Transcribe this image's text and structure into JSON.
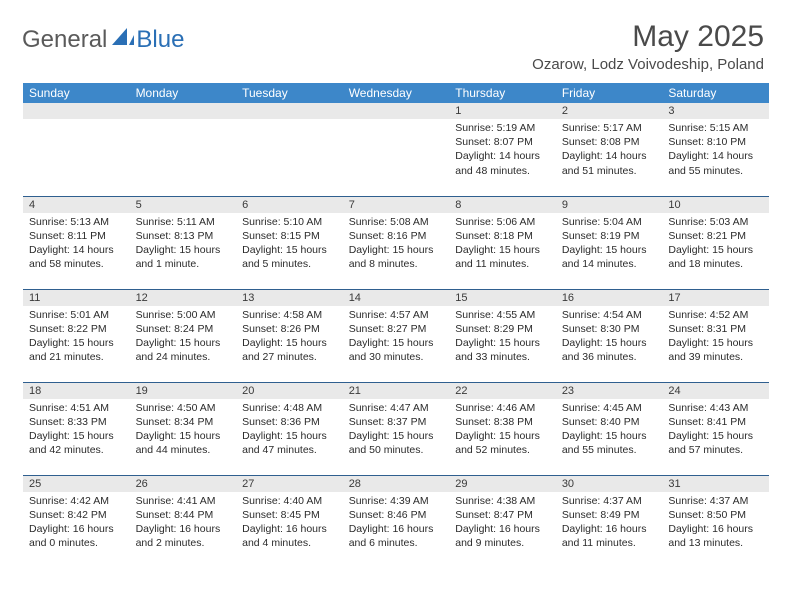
{
  "logo": {
    "general": "General",
    "blue": "Blue"
  },
  "title": "May 2025",
  "location": "Ozarow, Lodz Voivodeship, Poland",
  "week_header_bg": "#3d87c9",
  "weekdays": [
    "Sunday",
    "Monday",
    "Tuesday",
    "Wednesday",
    "Thursday",
    "Friday",
    "Saturday"
  ],
  "weeks": [
    [
      null,
      null,
      null,
      null,
      {
        "n": "1",
        "sr": "5:19 AM",
        "ss": "8:07 PM",
        "dl": "14 hours and 48 minutes."
      },
      {
        "n": "2",
        "sr": "5:17 AM",
        "ss": "8:08 PM",
        "dl": "14 hours and 51 minutes."
      },
      {
        "n": "3",
        "sr": "5:15 AM",
        "ss": "8:10 PM",
        "dl": "14 hours and 55 minutes."
      }
    ],
    [
      {
        "n": "4",
        "sr": "5:13 AM",
        "ss": "8:11 PM",
        "dl": "14 hours and 58 minutes."
      },
      {
        "n": "5",
        "sr": "5:11 AM",
        "ss": "8:13 PM",
        "dl": "15 hours and 1 minute."
      },
      {
        "n": "6",
        "sr": "5:10 AM",
        "ss": "8:15 PM",
        "dl": "15 hours and 5 minutes."
      },
      {
        "n": "7",
        "sr": "5:08 AM",
        "ss": "8:16 PM",
        "dl": "15 hours and 8 minutes."
      },
      {
        "n": "8",
        "sr": "5:06 AM",
        "ss": "8:18 PM",
        "dl": "15 hours and 11 minutes."
      },
      {
        "n": "9",
        "sr": "5:04 AM",
        "ss": "8:19 PM",
        "dl": "15 hours and 14 minutes."
      },
      {
        "n": "10",
        "sr": "5:03 AM",
        "ss": "8:21 PM",
        "dl": "15 hours and 18 minutes."
      }
    ],
    [
      {
        "n": "11",
        "sr": "5:01 AM",
        "ss": "8:22 PM",
        "dl": "15 hours and 21 minutes."
      },
      {
        "n": "12",
        "sr": "5:00 AM",
        "ss": "8:24 PM",
        "dl": "15 hours and 24 minutes."
      },
      {
        "n": "13",
        "sr": "4:58 AM",
        "ss": "8:26 PM",
        "dl": "15 hours and 27 minutes."
      },
      {
        "n": "14",
        "sr": "4:57 AM",
        "ss": "8:27 PM",
        "dl": "15 hours and 30 minutes."
      },
      {
        "n": "15",
        "sr": "4:55 AM",
        "ss": "8:29 PM",
        "dl": "15 hours and 33 minutes."
      },
      {
        "n": "16",
        "sr": "4:54 AM",
        "ss": "8:30 PM",
        "dl": "15 hours and 36 minutes."
      },
      {
        "n": "17",
        "sr": "4:52 AM",
        "ss": "8:31 PM",
        "dl": "15 hours and 39 minutes."
      }
    ],
    [
      {
        "n": "18",
        "sr": "4:51 AM",
        "ss": "8:33 PM",
        "dl": "15 hours and 42 minutes."
      },
      {
        "n": "19",
        "sr": "4:50 AM",
        "ss": "8:34 PM",
        "dl": "15 hours and 44 minutes."
      },
      {
        "n": "20",
        "sr": "4:48 AM",
        "ss": "8:36 PM",
        "dl": "15 hours and 47 minutes."
      },
      {
        "n": "21",
        "sr": "4:47 AM",
        "ss": "8:37 PM",
        "dl": "15 hours and 50 minutes."
      },
      {
        "n": "22",
        "sr": "4:46 AM",
        "ss": "8:38 PM",
        "dl": "15 hours and 52 minutes."
      },
      {
        "n": "23",
        "sr": "4:45 AM",
        "ss": "8:40 PM",
        "dl": "15 hours and 55 minutes."
      },
      {
        "n": "24",
        "sr": "4:43 AM",
        "ss": "8:41 PM",
        "dl": "15 hours and 57 minutes."
      }
    ],
    [
      {
        "n": "25",
        "sr": "4:42 AM",
        "ss": "8:42 PM",
        "dl": "16 hours and 0 minutes."
      },
      {
        "n": "26",
        "sr": "4:41 AM",
        "ss": "8:44 PM",
        "dl": "16 hours and 2 minutes."
      },
      {
        "n": "27",
        "sr": "4:40 AM",
        "ss": "8:45 PM",
        "dl": "16 hours and 4 minutes."
      },
      {
        "n": "28",
        "sr": "4:39 AM",
        "ss": "8:46 PM",
        "dl": "16 hours and 6 minutes."
      },
      {
        "n": "29",
        "sr": "4:38 AM",
        "ss": "8:47 PM",
        "dl": "16 hours and 9 minutes."
      },
      {
        "n": "30",
        "sr": "4:37 AM",
        "ss": "8:49 PM",
        "dl": "16 hours and 11 minutes."
      },
      {
        "n": "31",
        "sr": "4:37 AM",
        "ss": "8:50 PM",
        "dl": "16 hours and 13 minutes."
      }
    ]
  ],
  "labels": {
    "sunrise": "Sunrise: ",
    "sunset": "Sunset: ",
    "daylight": "Daylight: "
  }
}
